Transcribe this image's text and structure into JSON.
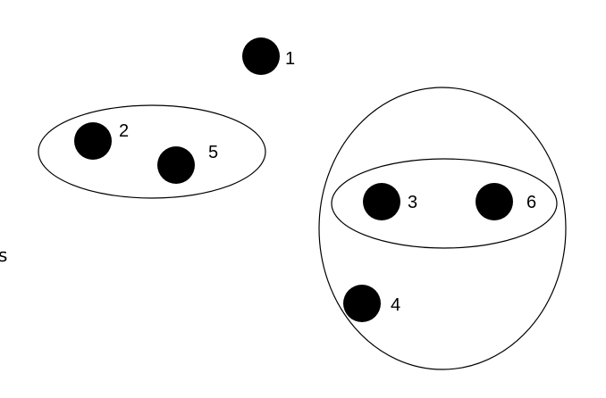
{
  "diagram": {
    "side_label": "s",
    "nodes": [
      {
        "id": "n1",
        "label": "1"
      },
      {
        "id": "n2",
        "label": "2"
      },
      {
        "id": "n3",
        "label": "3"
      },
      {
        "id": "n4",
        "label": "4"
      },
      {
        "id": "n5",
        "label": "5"
      },
      {
        "id": "n6",
        "label": "6"
      }
    ],
    "groups": [
      {
        "id": "g25",
        "members": [
          "2",
          "5"
        ]
      },
      {
        "id": "g36",
        "members": [
          "3",
          "6"
        ]
      },
      {
        "id": "g346",
        "members": [
          "3",
          "4",
          "6"
        ]
      }
    ],
    "colors": {
      "node": "#000000",
      "stroke": "#000000",
      "background": "#ffffff"
    }
  }
}
